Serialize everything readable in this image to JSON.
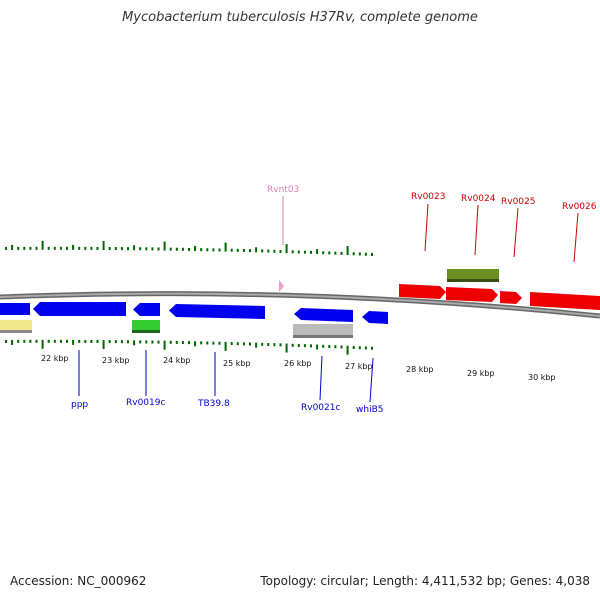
{
  "title": "Mycobacterium tuberculosis H37Rv, complete genome",
  "footer": {
    "accession": "Accession: NC_000962",
    "summary": "Topology: circular; Length: 4,411,532 bp; Genes: 4,038"
  },
  "scale": {
    "tick_labels": [
      "22 kbp",
      "23 kbp",
      "24 kbp",
      "25 kbp",
      "26 kbp",
      "27 kbp",
      "28 kbp",
      "29 kbp",
      "30 kbp"
    ]
  },
  "genes_top": [
    {
      "name": "Rvnt03",
      "color": "#e080b0"
    },
    {
      "name": "Rv0023",
      "color": "#cc0000"
    },
    {
      "name": "Rv0024",
      "color": "#cc0000"
    },
    {
      "name": "Rv0025",
      "color": "#cc0000"
    },
    {
      "name": "Rv0026",
      "color": "#cc0000"
    }
  ],
  "genes_bottom": [
    {
      "name": "ppp",
      "color": "#0000cc"
    },
    {
      "name": "Rv0019c",
      "color": "#0000cc"
    },
    {
      "name": "TB39.8",
      "color": "#0000cc"
    },
    {
      "name": "Rv0021c",
      "color": "#0000cc"
    },
    {
      "name": "whiB5",
      "color": "#0000cc"
    }
  ],
  "colors": {
    "reverse_strand": "#0000ee",
    "forward_strand": "#ee0000",
    "backbone": "#888888",
    "tick": "#006600",
    "feature_yellow": "#f0e68c",
    "feature_green": "#33cc33",
    "feature_olive": "#6b8e23",
    "feature_gray": "#bbbbbb",
    "feature_pink": "#f0a0c8"
  }
}
